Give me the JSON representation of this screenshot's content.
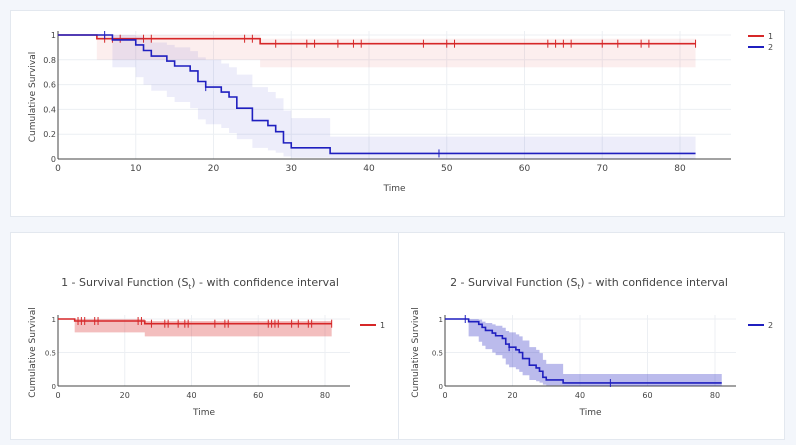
{
  "chart_data": [
    {
      "type": "line",
      "id": "combined",
      "title": "",
      "xlabel": "Time",
      "ylabel": "Cumulative Survival",
      "xlim": [
        0,
        86
      ],
      "ylim": [
        0,
        1.04
      ],
      "xticks": [
        0,
        10,
        20,
        30,
        40,
        50,
        60,
        70,
        80
      ],
      "yticks": [
        0,
        0.2,
        0.4,
        0.6,
        0.8,
        1
      ],
      "ytick_labels": [
        "0",
        "0.2",
        "0.4",
        "0.6",
        "0.8",
        "1"
      ],
      "legend": "top-right",
      "grid": true,
      "series": [
        "1",
        "2"
      ],
      "ci_opacity": 0.08
    },
    {
      "type": "line",
      "id": "group1",
      "title": "1 - Survival Function (S",
      "title_sub": "t",
      "title_end": ") - with confidence interval",
      "xlabel": "Time",
      "ylabel": "Cumulative Survival",
      "xlim": [
        0,
        88
      ],
      "ylim": [
        0,
        1.04
      ],
      "xticks": [
        0,
        20,
        40,
        60,
        80
      ],
      "yticks": [
        0,
        0.5,
        1
      ],
      "ytick_labels": [
        "0",
        "0.5",
        "1"
      ],
      "legend": "top-right",
      "grid": true,
      "series": [
        "1"
      ],
      "ci_opacity": 0.3
    },
    {
      "type": "line",
      "id": "group2",
      "title": "2 - Survival Function (S",
      "title_sub": "t",
      "title_end": ") - with confidence interval",
      "xlabel": "Time",
      "ylabel": "Cumulative Survival",
      "xlim": [
        0,
        86
      ],
      "ylim": [
        0,
        1.04
      ],
      "xticks": [
        0,
        20,
        40,
        60,
        80
      ],
      "yticks": [
        0,
        0.5,
        1
      ],
      "ytick_labels": [
        "0",
        "0.5",
        "1"
      ],
      "legend": "top-right",
      "grid": true,
      "series": [
        "2"
      ],
      "ci_opacity": 0.3
    }
  ],
  "series": {
    "1": {
      "name": "1",
      "color": "#d62728",
      "steps": [
        [
          0,
          1
        ],
        [
          5,
          0.97
        ],
        [
          26,
          0.93
        ]
      ],
      "end": 82,
      "ci": [
        [
          0,
          1,
          1
        ],
        [
          5,
          0.8,
          1
        ],
        [
          26,
          0.74,
          0.97
        ]
      ],
      "censored": [
        6,
        7,
        8,
        11,
        12,
        24,
        25,
        28,
        32,
        33,
        36,
        38,
        39,
        47,
        50,
        51,
        63,
        64,
        65,
        66,
        70,
        72,
        75,
        76,
        82
      ]
    },
    "2": {
      "name": "2",
      "color": "#1f1fbf",
      "steps": [
        [
          0,
          1
        ],
        [
          7,
          0.96
        ],
        [
          10,
          0.92
        ],
        [
          11,
          0.875
        ],
        [
          12,
          0.83
        ],
        [
          14,
          0.79
        ],
        [
          15,
          0.75
        ],
        [
          17,
          0.71
        ],
        [
          18,
          0.625
        ],
        [
          19,
          0.58
        ],
        [
          21,
          0.54
        ],
        [
          22,
          0.5
        ],
        [
          23,
          0.41
        ],
        [
          25,
          0.31
        ],
        [
          27,
          0.27
        ],
        [
          28,
          0.22
        ],
        [
          29,
          0.13
        ],
        [
          30,
          0.09
        ],
        [
          35,
          0.045
        ]
      ],
      "end": 82,
      "ci": [
        [
          0,
          1,
          1
        ],
        [
          7,
          0.74,
          1
        ],
        [
          10,
          0.66,
          0.99
        ],
        [
          11,
          0.6,
          0.96
        ],
        [
          12,
          0.55,
          0.94
        ],
        [
          14,
          0.5,
          0.92
        ],
        [
          15,
          0.46,
          0.9
        ],
        [
          17,
          0.41,
          0.87
        ],
        [
          18,
          0.32,
          0.82
        ],
        [
          19,
          0.28,
          0.8
        ],
        [
          21,
          0.25,
          0.77
        ],
        [
          22,
          0.21,
          0.74
        ],
        [
          23,
          0.16,
          0.68
        ],
        [
          25,
          0.09,
          0.58
        ],
        [
          27,
          0.07,
          0.54
        ],
        [
          28,
          0.05,
          0.49
        ],
        [
          29,
          0.02,
          0.39
        ],
        [
          30,
          0.01,
          0.33
        ],
        [
          35,
          0,
          0.18
        ]
      ],
      "censored": [
        6,
        19,
        49
      ]
    }
  }
}
